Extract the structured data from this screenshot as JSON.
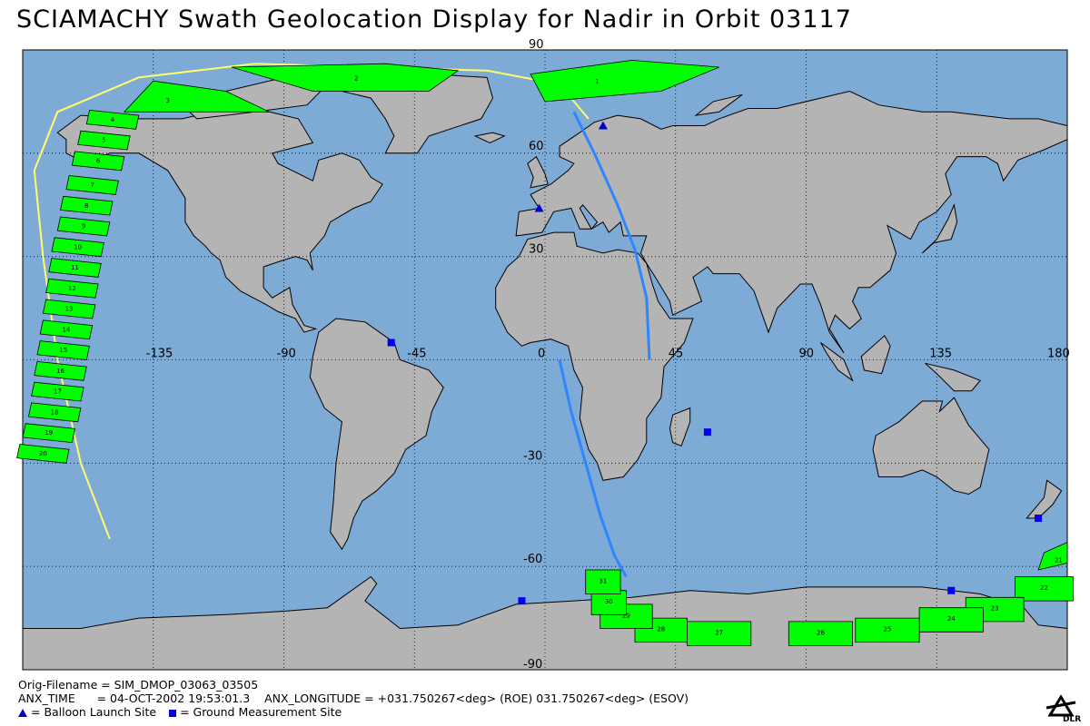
{
  "title": "SCIAMACHY Swath Geolocation Display for Nadir in Orbit 03117",
  "colors": {
    "ocean": "#7eaad6",
    "land": "#b4b4b4",
    "swath": "#00ff00",
    "ground_track_day": "#ffff66",
    "ground_track": "#2d86ff",
    "site_marker": "#0000cc"
  },
  "axes": {
    "lon_labels": [
      "-135",
      "-90",
      "-45",
      "0",
      "45",
      "90",
      "135",
      "180"
    ],
    "lat_labels": [
      "90",
      "60",
      "30",
      "-30",
      "-60",
      "-90"
    ]
  },
  "swath_labels": [
    "1",
    "2",
    "3",
    "4",
    "5",
    "6",
    "7",
    "8",
    "9",
    "10",
    "11",
    "12",
    "13",
    "14",
    "15",
    "16",
    "17",
    "18",
    "19",
    "20",
    "21",
    "22",
    "23",
    "24",
    "25",
    "26",
    "27",
    "28",
    "29",
    "30",
    "31"
  ],
  "sites": {
    "balloon": [
      [
        20,
        68
      ],
      [
        -2,
        44
      ]
    ],
    "ground": [
      [
        -53,
        5
      ],
      [
        56,
        -21
      ],
      [
        -8,
        -70
      ],
      [
        140,
        -67
      ],
      [
        170,
        -46
      ]
    ]
  },
  "footer": {
    "filename": "Orig-Filename = SIM_DMOP_03063_03505",
    "anx_time": "ANX_TIME      = 04-OCT-2002 19:53:01.3    ANX_LONGITUDE = +031.750267<deg> (ROE) 031.750267<deg> (ESOV)",
    "legend_balloon": "= Balloon Launch Site",
    "legend_ground": "= Ground Measurement Site"
  },
  "logo_text": "DLR"
}
